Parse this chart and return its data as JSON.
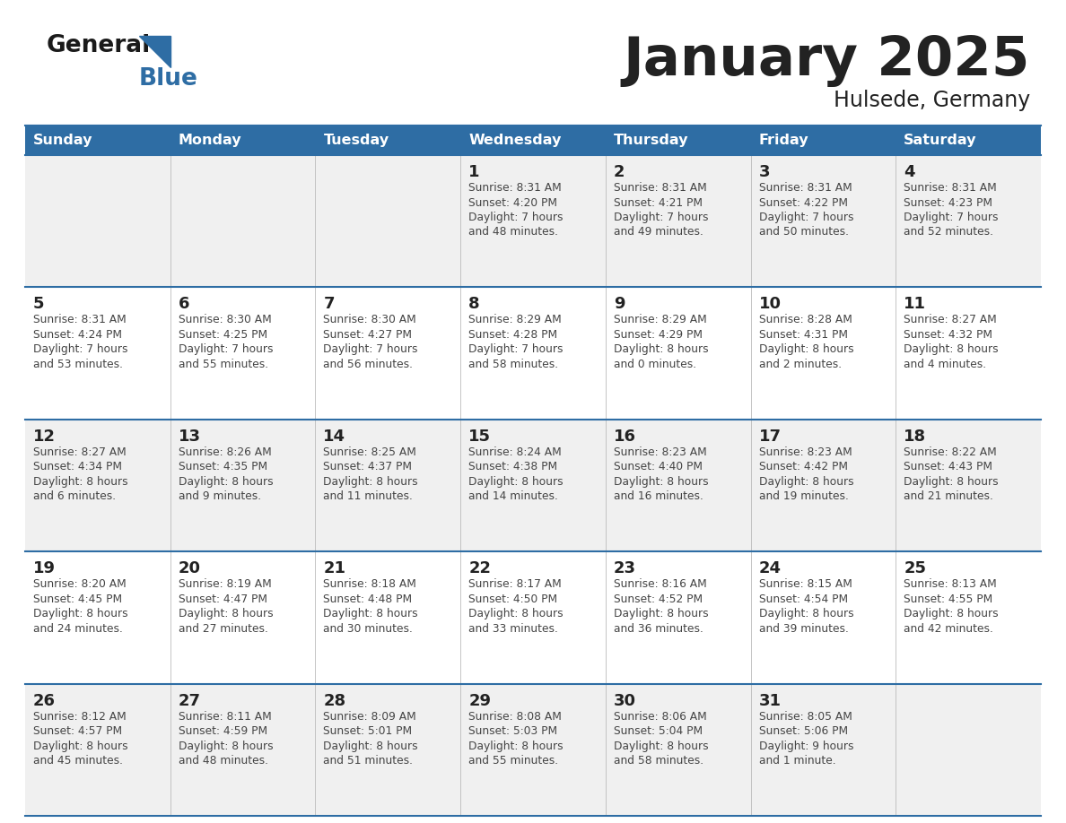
{
  "title": "January 2025",
  "subtitle": "Hulsede, Germany",
  "days_of_week": [
    "Sunday",
    "Monday",
    "Tuesday",
    "Wednesday",
    "Thursday",
    "Friday",
    "Saturday"
  ],
  "header_bg": "#2E6DA4",
  "header_text": "#FFFFFF",
  "row_bg_odd": "#F0F0F0",
  "row_bg_even": "#FFFFFF",
  "text_color": "#444444",
  "day_num_color": "#222222",
  "separator_color": "#2E6DA4",
  "logo_general_color": "#1a1a1a",
  "logo_blue_color": "#2E6DA4",
  "calendar_data": [
    [
      null,
      null,
      null,
      {
        "day": 1,
        "sunrise": "8:31 AM",
        "sunset": "4:20 PM",
        "daylight_line1": "Daylight: 7 hours",
        "daylight_line2": "and 48 minutes."
      },
      {
        "day": 2,
        "sunrise": "8:31 AM",
        "sunset": "4:21 PM",
        "daylight_line1": "Daylight: 7 hours",
        "daylight_line2": "and 49 minutes."
      },
      {
        "day": 3,
        "sunrise": "8:31 AM",
        "sunset": "4:22 PM",
        "daylight_line1": "Daylight: 7 hours",
        "daylight_line2": "and 50 minutes."
      },
      {
        "day": 4,
        "sunrise": "8:31 AM",
        "sunset": "4:23 PM",
        "daylight_line1": "Daylight: 7 hours",
        "daylight_line2": "and 52 minutes."
      }
    ],
    [
      {
        "day": 5,
        "sunrise": "8:31 AM",
        "sunset": "4:24 PM",
        "daylight_line1": "Daylight: 7 hours",
        "daylight_line2": "and 53 minutes."
      },
      {
        "day": 6,
        "sunrise": "8:30 AM",
        "sunset": "4:25 PM",
        "daylight_line1": "Daylight: 7 hours",
        "daylight_line2": "and 55 minutes."
      },
      {
        "day": 7,
        "sunrise": "8:30 AM",
        "sunset": "4:27 PM",
        "daylight_line1": "Daylight: 7 hours",
        "daylight_line2": "and 56 minutes."
      },
      {
        "day": 8,
        "sunrise": "8:29 AM",
        "sunset": "4:28 PM",
        "daylight_line1": "Daylight: 7 hours",
        "daylight_line2": "and 58 minutes."
      },
      {
        "day": 9,
        "sunrise": "8:29 AM",
        "sunset": "4:29 PM",
        "daylight_line1": "Daylight: 8 hours",
        "daylight_line2": "and 0 minutes."
      },
      {
        "day": 10,
        "sunrise": "8:28 AM",
        "sunset": "4:31 PM",
        "daylight_line1": "Daylight: 8 hours",
        "daylight_line2": "and 2 minutes."
      },
      {
        "day": 11,
        "sunrise": "8:27 AM",
        "sunset": "4:32 PM",
        "daylight_line1": "Daylight: 8 hours",
        "daylight_line2": "and 4 minutes."
      }
    ],
    [
      {
        "day": 12,
        "sunrise": "8:27 AM",
        "sunset": "4:34 PM",
        "daylight_line1": "Daylight: 8 hours",
        "daylight_line2": "and 6 minutes."
      },
      {
        "day": 13,
        "sunrise": "8:26 AM",
        "sunset": "4:35 PM",
        "daylight_line1": "Daylight: 8 hours",
        "daylight_line2": "and 9 minutes."
      },
      {
        "day": 14,
        "sunrise": "8:25 AM",
        "sunset": "4:37 PM",
        "daylight_line1": "Daylight: 8 hours",
        "daylight_line2": "and 11 minutes."
      },
      {
        "day": 15,
        "sunrise": "8:24 AM",
        "sunset": "4:38 PM",
        "daylight_line1": "Daylight: 8 hours",
        "daylight_line2": "and 14 minutes."
      },
      {
        "day": 16,
        "sunrise": "8:23 AM",
        "sunset": "4:40 PM",
        "daylight_line1": "Daylight: 8 hours",
        "daylight_line2": "and 16 minutes."
      },
      {
        "day": 17,
        "sunrise": "8:23 AM",
        "sunset": "4:42 PM",
        "daylight_line1": "Daylight: 8 hours",
        "daylight_line2": "and 19 minutes."
      },
      {
        "day": 18,
        "sunrise": "8:22 AM",
        "sunset": "4:43 PM",
        "daylight_line1": "Daylight: 8 hours",
        "daylight_line2": "and 21 minutes."
      }
    ],
    [
      {
        "day": 19,
        "sunrise": "8:20 AM",
        "sunset": "4:45 PM",
        "daylight_line1": "Daylight: 8 hours",
        "daylight_line2": "and 24 minutes."
      },
      {
        "day": 20,
        "sunrise": "8:19 AM",
        "sunset": "4:47 PM",
        "daylight_line1": "Daylight: 8 hours",
        "daylight_line2": "and 27 minutes."
      },
      {
        "day": 21,
        "sunrise": "8:18 AM",
        "sunset": "4:48 PM",
        "daylight_line1": "Daylight: 8 hours",
        "daylight_line2": "and 30 minutes."
      },
      {
        "day": 22,
        "sunrise": "8:17 AM",
        "sunset": "4:50 PM",
        "daylight_line1": "Daylight: 8 hours",
        "daylight_line2": "and 33 minutes."
      },
      {
        "day": 23,
        "sunrise": "8:16 AM",
        "sunset": "4:52 PM",
        "daylight_line1": "Daylight: 8 hours",
        "daylight_line2": "and 36 minutes."
      },
      {
        "day": 24,
        "sunrise": "8:15 AM",
        "sunset": "4:54 PM",
        "daylight_line1": "Daylight: 8 hours",
        "daylight_line2": "and 39 minutes."
      },
      {
        "day": 25,
        "sunrise": "8:13 AM",
        "sunset": "4:55 PM",
        "daylight_line1": "Daylight: 8 hours",
        "daylight_line2": "and 42 minutes."
      }
    ],
    [
      {
        "day": 26,
        "sunrise": "8:12 AM",
        "sunset": "4:57 PM",
        "daylight_line1": "Daylight: 8 hours",
        "daylight_line2": "and 45 minutes."
      },
      {
        "day": 27,
        "sunrise": "8:11 AM",
        "sunset": "4:59 PM",
        "daylight_line1": "Daylight: 8 hours",
        "daylight_line2": "and 48 minutes."
      },
      {
        "day": 28,
        "sunrise": "8:09 AM",
        "sunset": "5:01 PM",
        "daylight_line1": "Daylight: 8 hours",
        "daylight_line2": "and 51 minutes."
      },
      {
        "day": 29,
        "sunrise": "8:08 AM",
        "sunset": "5:03 PM",
        "daylight_line1": "Daylight: 8 hours",
        "daylight_line2": "and 55 minutes."
      },
      {
        "day": 30,
        "sunrise": "8:06 AM",
        "sunset": "5:04 PM",
        "daylight_line1": "Daylight: 8 hours",
        "daylight_line2": "and 58 minutes."
      },
      {
        "day": 31,
        "sunrise": "8:05 AM",
        "sunset": "5:06 PM",
        "daylight_line1": "Daylight: 9 hours",
        "daylight_line2": "and 1 minute."
      },
      null
    ]
  ]
}
